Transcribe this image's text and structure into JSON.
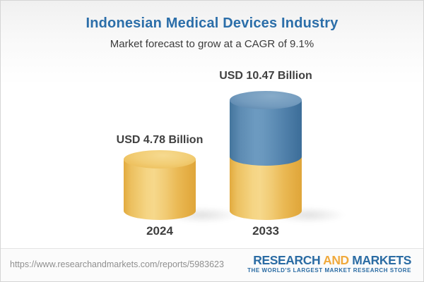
{
  "header": {
    "title": "Indonesian Medical Devices Industry",
    "subtitle": "Market forecast to grow at a CAGR of 9.1%"
  },
  "chart_data": {
    "type": "bar",
    "subtype": "3d-cylinder",
    "title": "Indonesian Medical Devices Industry",
    "subtitle": "Market forecast to grow at a CAGR of 9.1%",
    "cagr_percent": 9.1,
    "unit": "USD Billion",
    "categories": [
      "2024",
      "2033"
    ],
    "values": [
      4.78,
      10.47
    ],
    "value_labels": [
      "USD 4.78 Billion",
      "USD 10.47 Billion"
    ],
    "colors": {
      "base_segment": "#f0c768",
      "growth_segment": "#6c9ac0"
    },
    "layout": "2033 cylinder stacked: lower yellow segment at 2024 level, upper blue segment showing growth; no axes or gridlines"
  },
  "bars": [
    {
      "year": "2024",
      "value_label": "USD 4.78 Billion"
    },
    {
      "year": "2033",
      "value_label": "USD 10.47 Billion"
    }
  ],
  "footer": {
    "url": "https://www.researchandmarkets.com/reports/5983623",
    "logo": {
      "word1": "RESEARCH",
      "word2": "AND",
      "word3": "MARKETS",
      "tagline": "THE WORLD'S LARGEST MARKET RESEARCH STORE"
    }
  },
  "colors": {
    "title_blue": "#2b6ea9",
    "logo_blue": "#2a6ba3",
    "logo_orange": "#f0a93c",
    "text_dark": "#3f3f3f",
    "url_gray": "#8f8f8f",
    "background_top": "#f0f0f0"
  }
}
